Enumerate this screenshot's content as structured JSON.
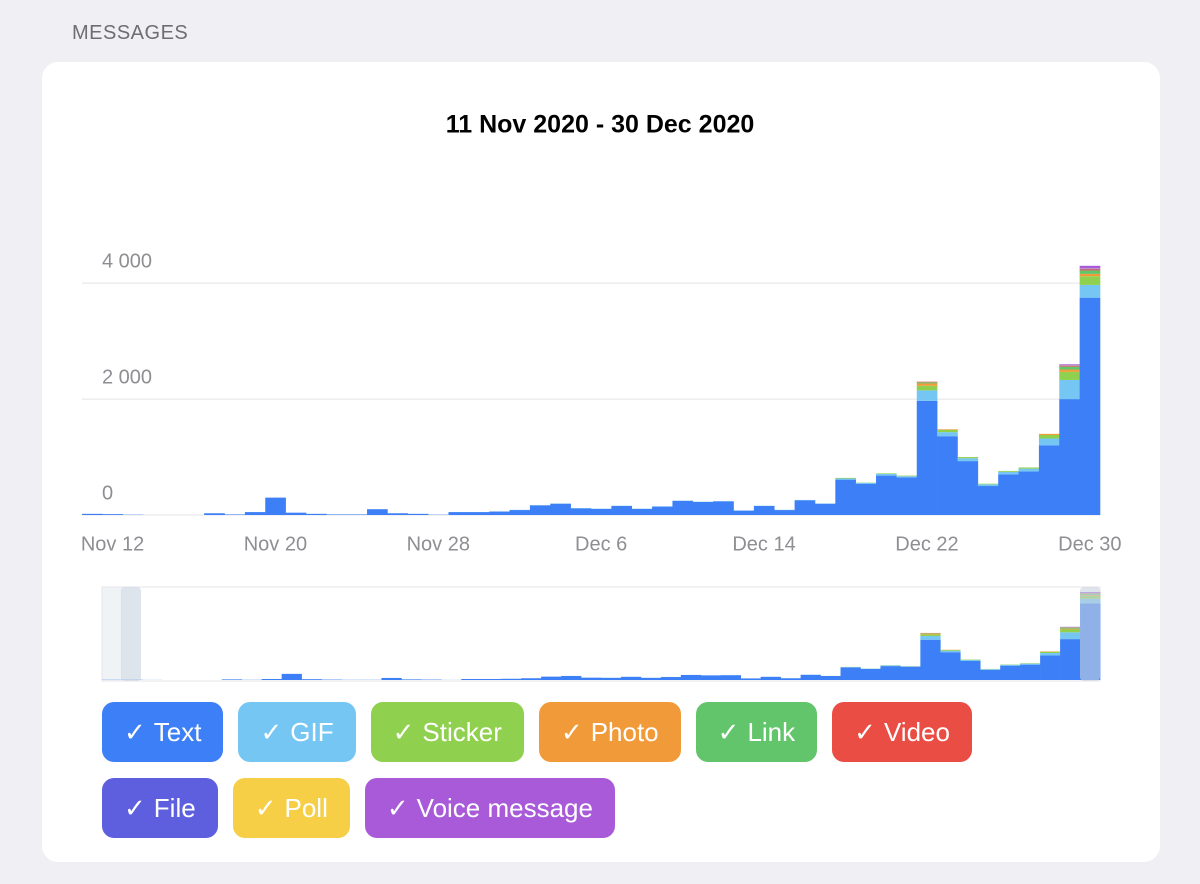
{
  "section": "MESSAGES",
  "chart_data": {
    "type": "stacked_bar",
    "title": "11 Nov 2020 - 30 Dec 2020",
    "categories": [
      null,
      "Nov 12",
      null,
      null,
      null,
      null,
      null,
      null,
      null,
      "Nov 20",
      null,
      null,
      null,
      null,
      null,
      null,
      null,
      "Nov 28",
      null,
      null,
      null,
      null,
      null,
      null,
      null,
      "Dec 6",
      null,
      null,
      null,
      null,
      null,
      null,
      null,
      "Dec 14",
      null,
      null,
      null,
      null,
      null,
      null,
      null,
      "Dec 22",
      null,
      null,
      null,
      null,
      null,
      null,
      null,
      "Dec 30"
    ],
    "ylim": [
      0,
      4400
    ],
    "yticks": [
      0,
      {
        "value": 2000,
        "label": "2 000"
      },
      {
        "value": 4000,
        "label": "4 000"
      }
    ],
    "grid": true,
    "legend_check": "✓",
    "series": [
      {
        "name": "Text",
        "color": "#3d7ff6",
        "values": [
          20,
          15,
          5,
          0,
          0,
          0,
          30,
          10,
          50,
          300,
          40,
          20,
          10,
          10,
          100,
          30,
          20,
          5,
          50,
          50,
          60,
          85,
          165,
          195,
          115,
          105,
          155,
          105,
          145,
          245,
          225,
          235,
          75,
          155,
          85,
          255,
          195,
          610,
          540,
          680,
          650,
          1970,
          1360,
          930,
          500,
          700,
          750,
          1200,
          2000,
          3750
        ]
      },
      {
        "name": "GIF",
        "color": "#76c6f4",
        "values": [
          0,
          0,
          0,
          0,
          0,
          0,
          0,
          0,
          0,
          0,
          0,
          0,
          0,
          0,
          0,
          0,
          0,
          0,
          0,
          0,
          0,
          5,
          5,
          5,
          5,
          5,
          5,
          5,
          5,
          5,
          5,
          5,
          5,
          5,
          5,
          5,
          5,
          20,
          15,
          30,
          20,
          180,
          70,
          50,
          30,
          45,
          50,
          120,
          330,
          220
        ]
      },
      {
        "name": "Sticker",
        "color": "#8fd14e",
        "values": [
          0,
          0,
          0,
          0,
          0,
          0,
          0,
          0,
          0,
          0,
          0,
          0,
          0,
          0,
          0,
          0,
          0,
          0,
          0,
          0,
          0,
          0,
          0,
          0,
          0,
          0,
          0,
          0,
          0,
          0,
          0,
          0,
          0,
          0,
          0,
          0,
          0,
          10,
          5,
          10,
          10,
          80,
          40,
          20,
          10,
          15,
          20,
          60,
          140,
          150
        ]
      },
      {
        "name": "Photo",
        "color": "#f19a39",
        "values": [
          0,
          0,
          0,
          0,
          0,
          0,
          0,
          0,
          0,
          0,
          0,
          0,
          0,
          0,
          0,
          0,
          0,
          0,
          0,
          0,
          0,
          0,
          0,
          0,
          0,
          0,
          0,
          0,
          0,
          0,
          0,
          0,
          0,
          0,
          0,
          0,
          0,
          0,
          0,
          0,
          0,
          40,
          10,
          0,
          0,
          0,
          0,
          20,
          40,
          40
        ]
      },
      {
        "name": "Link",
        "color": "#62c46b",
        "values": [
          0,
          0,
          0,
          0,
          0,
          0,
          0,
          0,
          0,
          0,
          0,
          0,
          0,
          0,
          0,
          0,
          0,
          0,
          0,
          0,
          0,
          0,
          0,
          0,
          0,
          0,
          0,
          0,
          0,
          0,
          0,
          0,
          0,
          0,
          0,
          0,
          0,
          0,
          0,
          0,
          0,
          20,
          0,
          0,
          0,
          0,
          0,
          0,
          50,
          60
        ]
      },
      {
        "name": "Video",
        "color": "#ea4d43",
        "values": [
          0,
          0,
          0,
          0,
          0,
          0,
          0,
          0,
          0,
          0,
          0,
          0,
          0,
          0,
          0,
          0,
          0,
          0,
          0,
          0,
          0,
          0,
          0,
          0,
          0,
          0,
          0,
          0,
          0,
          0,
          0,
          0,
          0,
          0,
          0,
          0,
          0,
          0,
          0,
          0,
          0,
          10,
          0,
          0,
          0,
          0,
          0,
          0,
          10,
          20
        ]
      },
      {
        "name": "File",
        "color": "#5d5fdf",
        "values": [
          0,
          0,
          0,
          0,
          0,
          0,
          0,
          0,
          0,
          0,
          0,
          0,
          0,
          0,
          0,
          0,
          0,
          0,
          0,
          0,
          0,
          0,
          0,
          0,
          0,
          0,
          0,
          0,
          0,
          0,
          0,
          0,
          0,
          0,
          0,
          0,
          0,
          0,
          0,
          0,
          0,
          0,
          0,
          0,
          0,
          0,
          0,
          0,
          5,
          10
        ]
      },
      {
        "name": "Poll",
        "color": "#f6cf46",
        "values": [
          0,
          0,
          0,
          0,
          0,
          0,
          0,
          0,
          0,
          0,
          0,
          0,
          0,
          0,
          0,
          0,
          0,
          0,
          0,
          0,
          0,
          0,
          0,
          0,
          0,
          0,
          0,
          0,
          0,
          0,
          0,
          0,
          0,
          0,
          0,
          0,
          0,
          0,
          0,
          0,
          0,
          0,
          0,
          0,
          0,
          0,
          0,
          0,
          5,
          5
        ]
      },
      {
        "name": "Voice message",
        "color": "#a85ad8",
        "values": [
          0,
          0,
          0,
          0,
          0,
          0,
          0,
          0,
          0,
          0,
          0,
          0,
          0,
          0,
          0,
          0,
          0,
          0,
          0,
          0,
          0,
          0,
          0,
          0,
          0,
          0,
          0,
          0,
          0,
          0,
          0,
          0,
          0,
          0,
          0,
          0,
          0,
          0,
          0,
          0,
          0,
          0,
          0,
          0,
          0,
          0,
          0,
          0,
          20,
          45
        ]
      }
    ]
  }
}
